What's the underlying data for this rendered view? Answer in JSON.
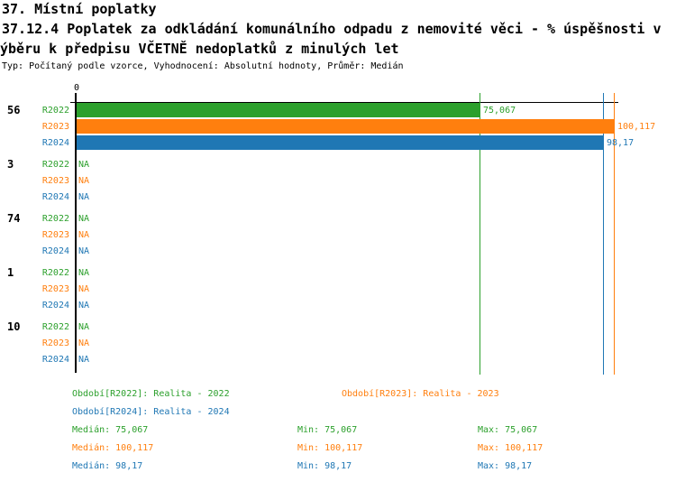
{
  "header": {
    "section_title": "37. Místní poplatky",
    "indicator_title_line1": "37.12.4 Poplatek za odkládání komunálního odpadu z nemovité věci - % úspěšnosti v",
    "indicator_title_line2": "ýběru k předpisu VČETNĚ nedoplatků z minulých let",
    "meta": "Typ: Počítaný podle vzorce, Vyhodnocení: Absolutní hodnoty, Průměr: Medián"
  },
  "axis": {
    "zero_label": "0"
  },
  "colors": {
    "r2022": "#2ca02c",
    "r2023": "#ff7f0e",
    "r2024": "#1f77b4",
    "axis": "#000000"
  },
  "chart_data": {
    "type": "bar",
    "orientation": "horizontal",
    "title": "37.12.4 Poplatek za odkládání komunálního odpadu z nemovité věci - % úspěšnosti výběru k předpisu VČETNĚ nedoplatků z minulých let",
    "categories": [
      "56",
      "3",
      "74",
      "1",
      "10"
    ],
    "series": [
      {
        "name": "R2022",
        "legend": "Období[R2022]: Realita - 2022",
        "color": "#2ca02c",
        "values": [
          75.067,
          null,
          null,
          null,
          null
        ],
        "labels": [
          "75,067",
          "NA",
          "NA",
          "NA",
          "NA"
        ],
        "median": 75.067,
        "min": 75.067,
        "max": 75.067
      },
      {
        "name": "R2023",
        "legend": "Období[R2023]: Realita - 2023",
        "color": "#ff7f0e",
        "values": [
          100.117,
          null,
          null,
          null,
          null
        ],
        "labels": [
          "100,117",
          "NA",
          "NA",
          "NA",
          "NA"
        ],
        "median": 100.117,
        "min": 100.117,
        "max": 100.117
      },
      {
        "name": "R2024",
        "legend": "Období[R2024]: Realita - 2024",
        "color": "#1f77b4",
        "values": [
          98.17,
          null,
          null,
          null,
          null
        ],
        "labels": [
          "98,17",
          "NA",
          "NA",
          "NA",
          "NA"
        ],
        "median": 98.17,
        "min": 98.17,
        "max": 98.17
      }
    ],
    "xlim": [
      0,
      101
    ],
    "x_tick_labels": [
      "0"
    ],
    "grid": false,
    "legend_position": "bottom"
  },
  "groups": [
    {
      "id": "56",
      "rows": [
        {
          "series": "R2022",
          "value": 75.067,
          "display": "75,067"
        },
        {
          "series": "R2023",
          "value": 100.117,
          "display": "100,117"
        },
        {
          "series": "R2024",
          "value": 98.17,
          "display": "98,17"
        }
      ]
    },
    {
      "id": "3",
      "rows": [
        {
          "series": "R2022",
          "display": "NA"
        },
        {
          "series": "R2023",
          "display": "NA"
        },
        {
          "series": "R2024",
          "display": "NA"
        }
      ]
    },
    {
      "id": "74",
      "rows": [
        {
          "series": "R2022",
          "display": "NA"
        },
        {
          "series": "R2023",
          "display": "NA"
        },
        {
          "series": "R2024",
          "display": "NA"
        }
      ]
    },
    {
      "id": "1",
      "rows": [
        {
          "series": "R2022",
          "display": "NA"
        },
        {
          "series": "R2023",
          "display": "NA"
        },
        {
          "series": "R2024",
          "display": "NA"
        }
      ]
    },
    {
      "id": "10",
      "rows": [
        {
          "series": "R2022",
          "display": "NA"
        },
        {
          "series": "R2023",
          "display": "NA"
        },
        {
          "series": "R2024",
          "display": "NA"
        }
      ]
    }
  ],
  "legend": {
    "period_r2022": "Období[R2022]: Realita - 2022",
    "period_r2023": "Období[R2023]: Realita - 2023",
    "period_r2024": "Období[R2024]: Realita - 2024",
    "stats": [
      {
        "median": "Medián: 75,067",
        "min": "Min: 75,067",
        "max": "Max: 75,067"
      },
      {
        "median": "Medián: 100,117",
        "min": "Min: 100,117",
        "max": "Max: 100,117"
      },
      {
        "median": "Medián: 98,17",
        "min": "Min: 98,17",
        "max": "Max: 98,17"
      }
    ]
  }
}
